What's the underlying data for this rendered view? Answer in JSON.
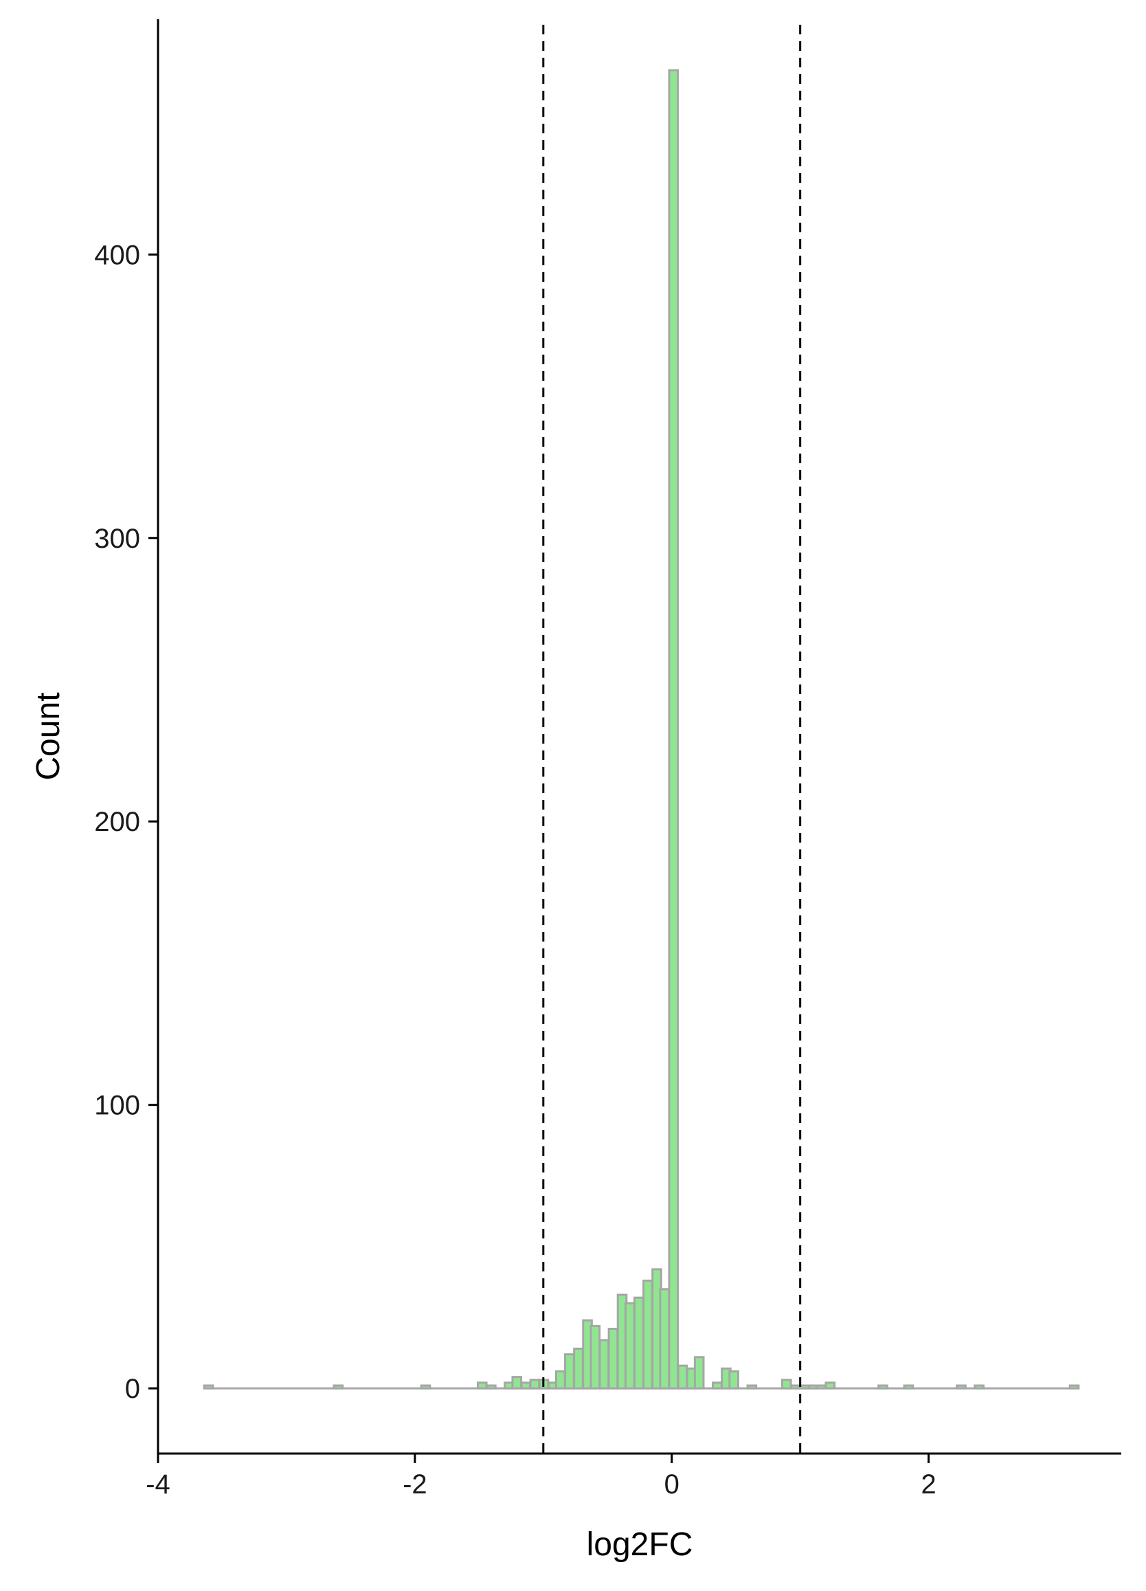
{
  "chart_data": {
    "type": "bar",
    "subtype": "histogram",
    "title": "",
    "xlabel": "log2FC",
    "ylabel": "Count",
    "xlim": [
      -4,
      3.5
    ],
    "ylim": [
      -23,
      483
    ],
    "x_ticks": [
      -4,
      -2,
      0,
      2
    ],
    "x_tick_labels": [
      "-4",
      "-2",
      "0",
      "2"
    ],
    "y_ticks": [
      0,
      100,
      200,
      300,
      400
    ],
    "y_tick_labels": [
      "0",
      "100",
      "200",
      "300",
      "400"
    ],
    "bin_width": 0.0675,
    "bins": [
      {
        "x": -3.64,
        "count": 1
      },
      {
        "x": -2.63,
        "count": 1
      },
      {
        "x": -1.95,
        "count": 1
      },
      {
        "x": -1.51,
        "count": 2
      },
      {
        "x": -1.44,
        "count": 1
      },
      {
        "x": -1.3,
        "count": 2
      },
      {
        "x": -1.24,
        "count": 4
      },
      {
        "x": -1.17,
        "count": 2
      },
      {
        "x": -1.1,
        "count": 3
      },
      {
        "x": -1.03,
        "count": 3
      },
      {
        "x": -0.96,
        "count": 2
      },
      {
        "x": -0.9,
        "count": 6
      },
      {
        "x": -0.83,
        "count": 12
      },
      {
        "x": -0.76,
        "count": 14
      },
      {
        "x": -0.69,
        "count": 24
      },
      {
        "x": -0.63,
        "count": 22
      },
      {
        "x": -0.56,
        "count": 17
      },
      {
        "x": -0.49,
        "count": 21
      },
      {
        "x": -0.42,
        "count": 33
      },
      {
        "x": -0.36,
        "count": 30
      },
      {
        "x": -0.29,
        "count": 32
      },
      {
        "x": -0.22,
        "count": 38
      },
      {
        "x": -0.15,
        "count": 42
      },
      {
        "x": -0.09,
        "count": 35
      },
      {
        "x": -0.02,
        "count": 465
      },
      {
        "x": 0.05,
        "count": 8
      },
      {
        "x": 0.12,
        "count": 7
      },
      {
        "x": 0.18,
        "count": 11
      },
      {
        "x": 0.32,
        "count": 2
      },
      {
        "x": 0.39,
        "count": 7
      },
      {
        "x": 0.45,
        "count": 6
      },
      {
        "x": 0.59,
        "count": 1
      },
      {
        "x": 0.86,
        "count": 3
      },
      {
        "x": 0.93,
        "count": 1
      },
      {
        "x": 1.0,
        "count": 1
      },
      {
        "x": 1.07,
        "count": 1
      },
      {
        "x": 1.13,
        "count": 1
      },
      {
        "x": 1.2,
        "count": 2
      },
      {
        "x": 1.61,
        "count": 1
      },
      {
        "x": 1.81,
        "count": 1
      },
      {
        "x": 2.22,
        "count": 1
      },
      {
        "x": 2.36,
        "count": 1
      },
      {
        "x": 3.1,
        "count": 1
      }
    ],
    "reference_lines_x": [
      -1,
      1
    ],
    "reference_line_style": "dashed",
    "fill_color": "#90e690",
    "stroke_color": "#a6a6a6",
    "grid": false,
    "legend": "none"
  }
}
